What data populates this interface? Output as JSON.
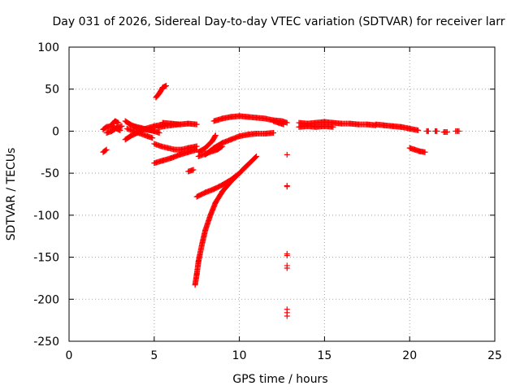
{
  "chart_data": {
    "type": "scatter",
    "title": "Day 031 of 2026, Sidereal Day-to-day VTEC variation (SDTVAR) for receiver larr",
    "xlabel": "GPS time / hours",
    "ylabel": "SDTVAR / TECUs",
    "xlim": [
      0,
      25
    ],
    "ylim": [
      -250,
      100
    ],
    "xticks": [
      0,
      5,
      10,
      15,
      20,
      25
    ],
    "yticks": [
      -250,
      -200,
      -150,
      -100,
      -50,
      0,
      50,
      100
    ],
    "grid": true,
    "legend": "none",
    "marker": "plus",
    "color": "#ff0000",
    "segments": [
      [
        [
          2.0,
          -25
        ],
        [
          2.2,
          -22
        ]
      ],
      [
        [
          2.0,
          2
        ],
        [
          2.2,
          5
        ],
        [
          2.5,
          6
        ],
        [
          2.8,
          3
        ],
        [
          3.0,
          1
        ]
      ],
      [
        [
          2.2,
          -2
        ],
        [
          2.5,
          0
        ],
        [
          2.8,
          4
        ],
        [
          3.1,
          6
        ]
      ],
      [
        [
          2.5,
          8
        ],
        [
          2.7,
          12
        ],
        [
          2.9,
          10
        ]
      ],
      [
        [
          3.3,
          12
        ],
        [
          3.6,
          8
        ],
        [
          4.0,
          4
        ],
        [
          4.5,
          2
        ],
        [
          5.0,
          0
        ],
        [
          5.3,
          -2
        ]
      ],
      [
        [
          3.3,
          -10
        ],
        [
          3.6,
          -6
        ],
        [
          4.0,
          -2
        ],
        [
          4.5,
          3
        ],
        [
          5.0,
          6
        ],
        [
          5.5,
          8
        ]
      ],
      [
        [
          3.4,
          3
        ],
        [
          3.8,
          0
        ],
        [
          4.2,
          -3
        ],
        [
          4.6,
          -6
        ],
        [
          4.9,
          -8
        ]
      ],
      [
        [
          3.8,
          6
        ],
        [
          4.2,
          4
        ],
        [
          4.6,
          2
        ],
        [
          5.0,
          0
        ]
      ],
      [
        [
          5.1,
          40
        ],
        [
          5.3,
          45
        ],
        [
          5.5,
          52
        ],
        [
          5.7,
          54
        ]
      ],
      [
        [
          5.5,
          10
        ],
        [
          6.0,
          9
        ],
        [
          6.5,
          8
        ],
        [
          7.0,
          9
        ],
        [
          7.5,
          8
        ]
      ],
      [
        [
          5.2,
          4
        ],
        [
          5.6,
          6
        ],
        [
          6.0,
          7
        ],
        [
          6.4,
          8
        ]
      ],
      [
        [
          5.0,
          -38
        ],
        [
          5.5,
          -35
        ],
        [
          6.0,
          -32
        ],
        [
          6.5,
          -28
        ],
        [
          7.0,
          -25
        ],
        [
          7.5,
          -22
        ]
      ],
      [
        [
          5.0,
          -15
        ],
        [
          5.4,
          -18
        ],
        [
          5.8,
          -20
        ],
        [
          6.2,
          -22
        ],
        [
          6.6,
          -22
        ],
        [
          7.0,
          -20
        ],
        [
          7.5,
          -18
        ]
      ],
      [
        [
          7.0,
          -48
        ],
        [
          7.3,
          -46
        ]
      ],
      [
        [
          7.6,
          -30
        ],
        [
          8.0,
          -27
        ],
        [
          8.4,
          -24
        ],
        [
          8.7,
          -22
        ],
        [
          9.0,
          -18
        ]
      ],
      [
        [
          7.6,
          -25
        ],
        [
          8.0,
          -20
        ],
        [
          8.4,
          -12
        ],
        [
          8.6,
          -5
        ]
      ],
      [
        [
          7.5,
          -78
        ],
        [
          8.0,
          -73
        ],
        [
          8.5,
          -69
        ],
        [
          9.0,
          -64
        ],
        [
          9.5,
          -58
        ],
        [
          10.0,
          -50
        ],
        [
          10.5,
          -40
        ],
        [
          11.0,
          -30
        ]
      ],
      [
        [
          7.4,
          -183
        ],
        [
          7.5,
          -170
        ],
        [
          7.6,
          -155
        ],
        [
          7.8,
          -135
        ],
        [
          8.0,
          -118
        ],
        [
          8.3,
          -100
        ],
        [
          8.6,
          -85
        ],
        [
          9.0,
          -72
        ],
        [
          9.5,
          -60
        ],
        [
          10.0,
          -50
        ],
        [
          10.5,
          -40
        ]
      ],
      [
        [
          8.0,
          -28
        ],
        [
          8.5,
          -20
        ],
        [
          9.0,
          -14
        ],
        [
          9.5,
          -10
        ],
        [
          10.0,
          -6
        ],
        [
          10.5,
          -4
        ],
        [
          11.0,
          -3
        ],
        [
          11.5,
          -3
        ],
        [
          12.0,
          -2
        ]
      ],
      [
        [
          8.5,
          12
        ],
        [
          9.0,
          15
        ],
        [
          9.5,
          17
        ],
        [
          10.0,
          18
        ],
        [
          10.5,
          17
        ],
        [
          11.0,
          16
        ],
        [
          11.5,
          15
        ],
        [
          12.0,
          13
        ],
        [
          12.5,
          12
        ],
        [
          12.8,
          10
        ]
      ],
      [
        [
          12.0,
          12
        ],
        [
          12.3,
          10
        ],
        [
          12.6,
          8
        ]
      ],
      [
        [
          13.5,
          10
        ],
        [
          14.0,
          9
        ],
        [
          14.5,
          10
        ],
        [
          15.0,
          11
        ],
        [
          15.5,
          10
        ],
        [
          16.0,
          9
        ],
        [
          16.5,
          9
        ],
        [
          17.0,
          8
        ],
        [
          17.5,
          8
        ],
        [
          18.0,
          7
        ]
      ],
      [
        [
          13.5,
          5
        ],
        [
          14.0,
          6
        ],
        [
          14.5,
          5
        ],
        [
          15.0,
          6
        ],
        [
          15.5,
          5
        ]
      ],
      [
        [
          18.0,
          8
        ],
        [
          18.5,
          7
        ],
        [
          19.0,
          6
        ],
        [
          19.5,
          5
        ],
        [
          20.0,
          3
        ],
        [
          20.5,
          1
        ]
      ],
      [
        [
          20.0,
          -20
        ],
        [
          20.3,
          -22
        ],
        [
          20.6,
          -24
        ],
        [
          20.9,
          -25
        ]
      ],
      [
        [
          21.0,
          0
        ],
        [
          21.1,
          0
        ]
      ],
      [
        [
          21.5,
          0
        ],
        [
          21.6,
          0
        ]
      ],
      [
        [
          22.0,
          -1
        ],
        [
          22.2,
          -1
        ]
      ],
      [
        [
          22.7,
          0
        ],
        [
          22.9,
          0
        ]
      ]
    ],
    "isolated_points": [
      [
        12.8,
        -28
      ],
      [
        12.8,
        -65
      ],
      [
        12.8,
        -66
      ],
      [
        12.8,
        -146
      ],
      [
        12.8,
        -148
      ],
      [
        12.8,
        -160
      ],
      [
        12.8,
        -163
      ],
      [
        12.8,
        -212
      ],
      [
        12.8,
        -216
      ],
      [
        12.8,
        -220
      ]
    ]
  }
}
